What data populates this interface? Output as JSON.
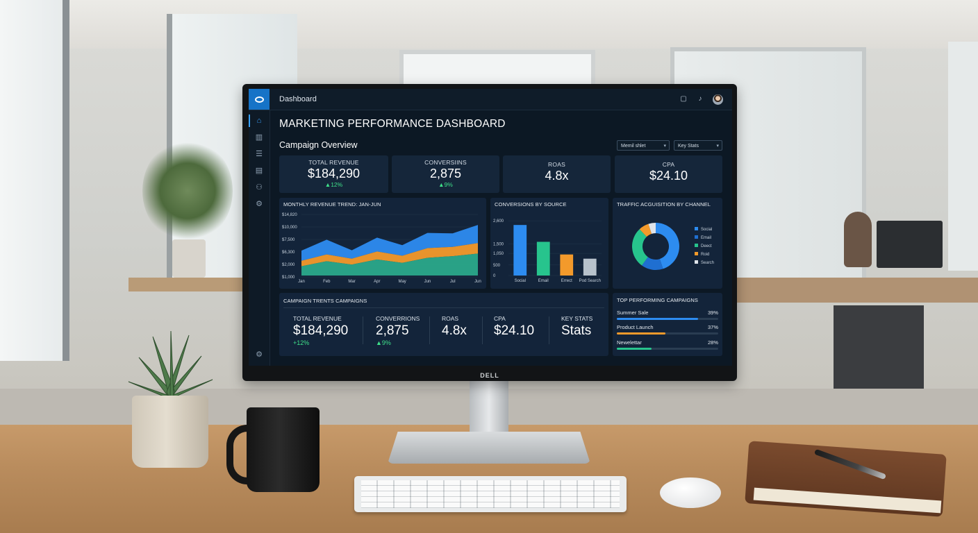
{
  "app": {
    "window_title": "Dashboard",
    "monitor_brand": "DELL"
  },
  "sidebar": {
    "items": [
      {
        "icon": "home-icon",
        "glyph": "⌂",
        "active": true
      },
      {
        "icon": "bar-chart-icon",
        "glyph": "▥",
        "active": false
      },
      {
        "icon": "list-icon",
        "glyph": "☰",
        "active": false
      },
      {
        "icon": "calendar-icon",
        "glyph": "▤",
        "active": false
      },
      {
        "icon": "user-icon",
        "glyph": "⚇",
        "active": false
      },
      {
        "icon": "settings-icon",
        "glyph": "⚙",
        "active": false
      }
    ],
    "bottom_icon": {
      "icon": "gear-icon",
      "glyph": "⚙"
    }
  },
  "topbar_icons": [
    {
      "icon": "chat-icon",
      "glyph": "▢"
    },
    {
      "icon": "bell-icon",
      "glyph": "♪"
    }
  ],
  "header": {
    "title": "MARKETING PERFORMANCE DASHBOARD",
    "section": "Campaign Overview",
    "select_1": "Memil shlet",
    "select_2": "Key Stats"
  },
  "kpis": [
    {
      "label": "TOTAL REVENUE",
      "value": "$184,290",
      "delta": "▲12%"
    },
    {
      "label": "CONVERSIINS",
      "value": "2,875",
      "delta": "▲9%"
    },
    {
      "label": "ROAS",
      "value": "4.8x",
      "delta": ""
    },
    {
      "label": "CPA",
      "value": "$24.10",
      "delta": ""
    }
  ],
  "revenue_panel": {
    "title": "MONTHLY REVENUE TREND: JAN-JUN"
  },
  "source_panel": {
    "title": "CONVERSIONS BY SOURCE"
  },
  "traffic_panel": {
    "title": "TRAFFIC ACGUISITION BY CHANNEL"
  },
  "campaign_panel": {
    "title": "CAMPAIGN TRENTS CAMPAIGNS"
  },
  "top_panel": {
    "title": "TOP PERFORMING CAMPAIGNS"
  },
  "bottom_stats": [
    {
      "label": "TOTAL REVENUE",
      "value": "$184,290",
      "delta": "+12%"
    },
    {
      "label": "CONVERRIONS",
      "value": "2,875",
      "delta": "▲9%"
    },
    {
      "label": "ROAS",
      "value": "4.8x",
      "delta": ""
    },
    {
      "label": "CPA",
      "value": "$24.10",
      "delta": ""
    },
    {
      "label": "KEY STATS",
      "value": "Stats",
      "delta": ""
    }
  ],
  "top_campaigns": [
    {
      "name": "Summer Sale",
      "pct": "39%",
      "value": 0.8,
      "color": "#2d8cf0"
    },
    {
      "name": "Product Launch",
      "pct": "37%",
      "value": 0.48,
      "color": "#f39a2b"
    },
    {
      "name": "Newelettar",
      "pct": "28%",
      "value": 0.34,
      "color": "#27c48d"
    }
  ],
  "colors": {
    "accent": "#2d8cf0",
    "green": "#27c48d",
    "orange": "#f39a2b",
    "delta_up": "#3fe08a"
  },
  "chart_data": [
    {
      "type": "area",
      "title": "MONTHLY REVENUE TREND: JAN-JUN",
      "categories": [
        "Jan",
        "Feb",
        "Mar",
        "Apr",
        "May",
        "Jun",
        "Jul",
        "Jun"
      ],
      "y_ticks": [
        "$14,820",
        "$10,000",
        "$7,500",
        "$6,300",
        "$2,000",
        "$1,000"
      ],
      "ylim": [
        0,
        14820
      ],
      "stacked": true,
      "series": [
        {
          "color": "#2aa98a",
          "values": [
            2200,
            3400,
            2600,
            3800,
            3000,
            4200,
            4600,
            5200
          ]
        },
        {
          "color": "#f39a2b",
          "values": [
            1300,
            1600,
            1400,
            1900,
            1700,
            2300,
            2200,
            2500
          ]
        },
        {
          "color": "#2d8cf0",
          "values": [
            2400,
            3500,
            2000,
            3300,
            2500,
            3600,
            3200,
            4300
          ]
        }
      ]
    },
    {
      "type": "bar",
      "title": "CONVERSIONS BY SOURCE",
      "categories": [
        "Social",
        "Email",
        "Errect",
        "Pod Search"
      ],
      "values": [
        2400,
        1600,
        1000,
        800
      ],
      "colors": [
        "#2d8cf0",
        "#27c48d",
        "#f39a2b",
        "#b7c2cc"
      ],
      "y_ticks": [
        "2,600",
        "1,500",
        "1,050",
        "500",
        "0"
      ],
      "ylim": [
        0,
        2900
      ]
    },
    {
      "type": "pie",
      "title": "TRAFFIC ACGUISITION BY CHANNEL",
      "labels": [
        "Social",
        "Email",
        "Deect",
        "Roid",
        "Search"
      ],
      "values": [
        45,
        15,
        28,
        7,
        5
      ],
      "colors": [
        "#2d8cf0",
        "#1f6fd1",
        "#27c48d",
        "#f39a2b",
        "#dfe4ea"
      ],
      "donut": true
    }
  ]
}
